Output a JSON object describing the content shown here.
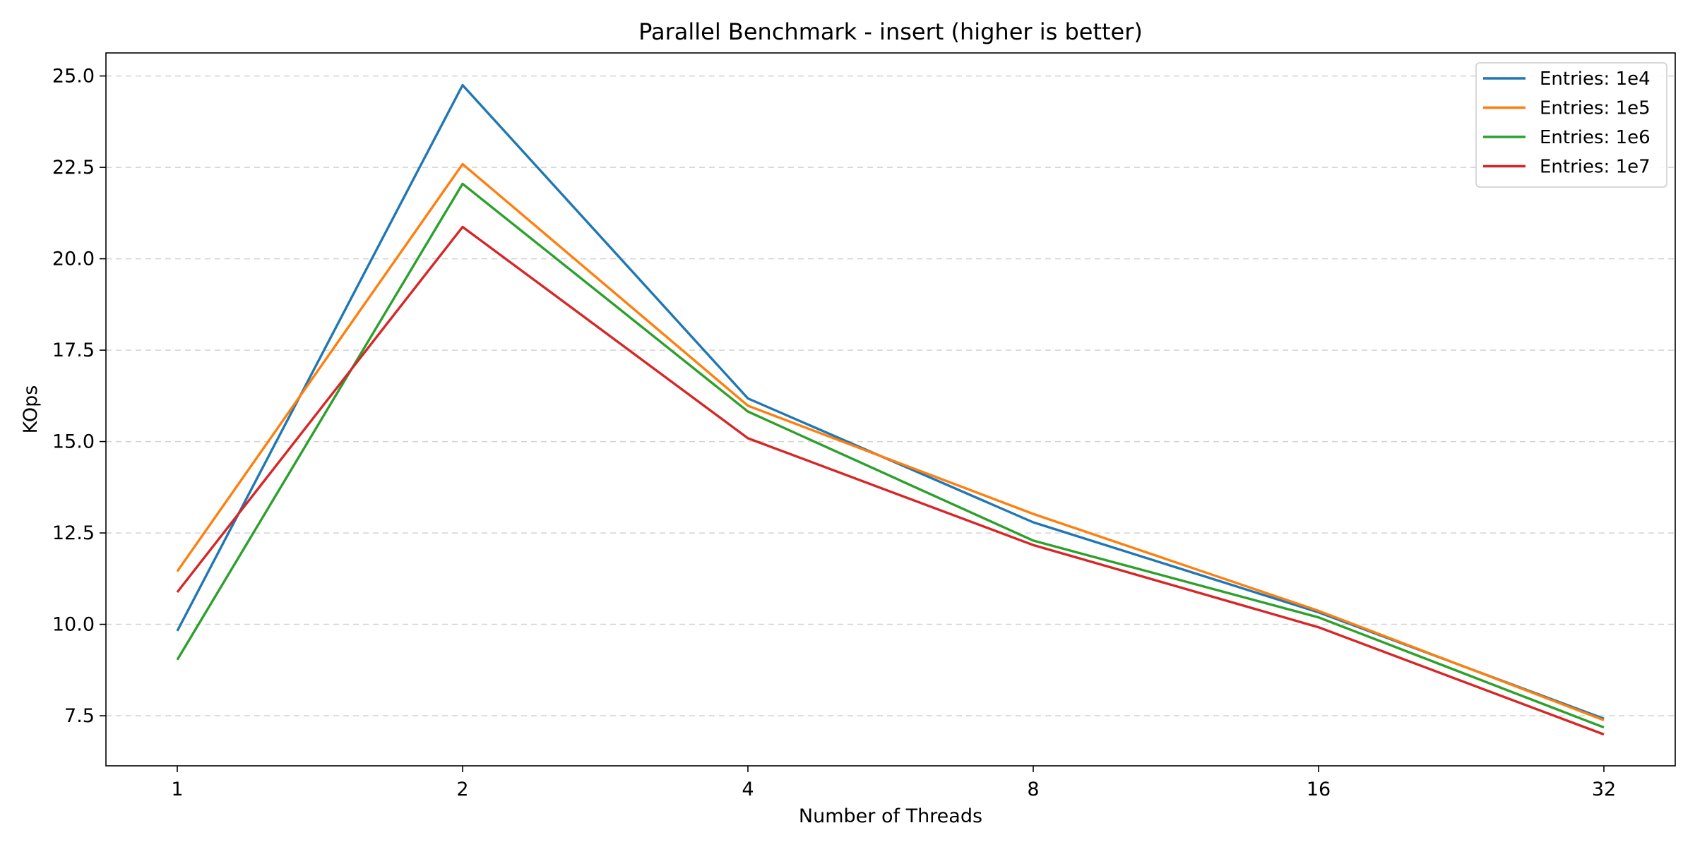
{
  "chart_data": {
    "type": "line",
    "title": "Parallel Benchmark - insert (higher is better)",
    "xlabel": "Number of Threads",
    "ylabel": "KOps",
    "x": [
      "1",
      "2",
      "4",
      "8",
      "16",
      "32"
    ],
    "x_scale": "categorical",
    "ylim": [
      6.13,
      25.63
    ],
    "yticks": [
      "7.5",
      "10.0",
      "12.5",
      "15.0",
      "17.5",
      "20.0",
      "22.5",
      "25.0"
    ],
    "ytick_values": [
      7.5,
      10.0,
      12.5,
      15.0,
      17.5,
      20.0,
      22.5,
      25.0
    ],
    "grid": "horizontal dashed",
    "legend_position": "top-right",
    "series": [
      {
        "name": "Entries: 1e4",
        "color": "#1f77b4",
        "values": [
          9.82,
          24.75,
          16.18,
          12.79,
          10.33,
          7.42
        ]
      },
      {
        "name": "Entries: 1e5",
        "color": "#ff7f0e",
        "values": [
          11.45,
          22.59,
          15.98,
          13.02,
          10.37,
          7.38
        ]
      },
      {
        "name": "Entries: 1e6",
        "color": "#2ca02c",
        "values": [
          9.03,
          22.05,
          15.82,
          12.29,
          10.19,
          7.18
        ]
      },
      {
        "name": "Entries: 1e7",
        "color": "#d62728",
        "values": [
          10.88,
          20.87,
          15.09,
          12.17,
          9.92,
          6.99
        ]
      }
    ]
  }
}
